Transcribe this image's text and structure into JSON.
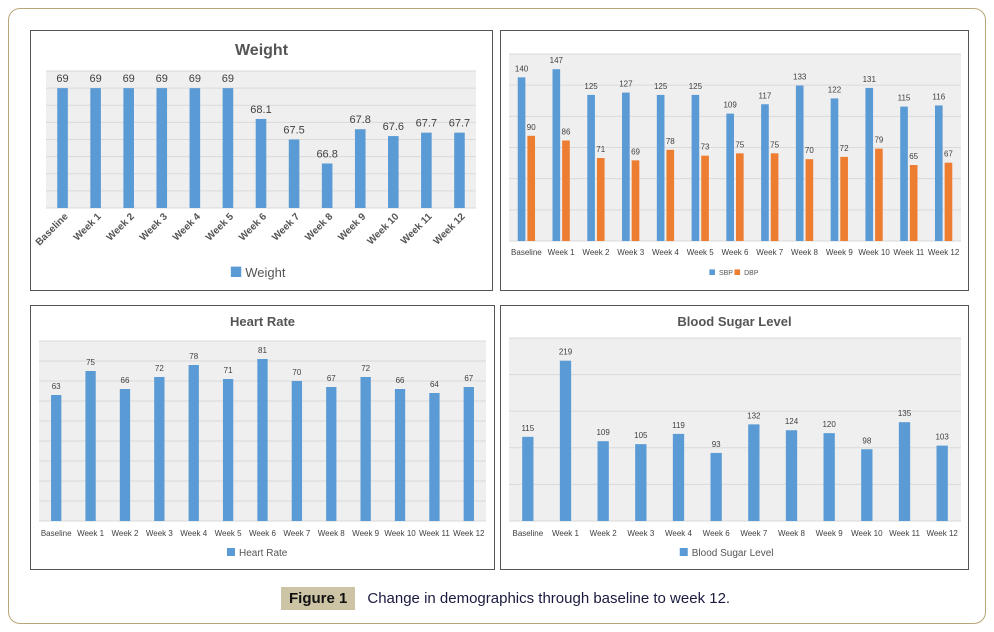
{
  "chart_data": [
    {
      "type": "bar",
      "title": "Weight",
      "categories": [
        "Baseline",
        "Week 1",
        "Week 2",
        "Week 3",
        "Week 4",
        "Week 5",
        "Week 6",
        "Week 7",
        "Week 8",
        "Week 9",
        "Week 10",
        "Week 11",
        "Week 12"
      ],
      "series": [
        {
          "name": "Weight",
          "color": "#5b9bd5",
          "values": [
            69,
            69,
            69,
            69,
            69,
            69,
            68.1,
            67.5,
            66.8,
            67.8,
            67.6,
            67.7,
            67.7
          ]
        }
      ],
      "ylim": [
        65.5,
        69.5
      ],
      "grid": true,
      "legend": "bottom",
      "xlabel": "",
      "ylabel": ""
    },
    {
      "type": "bar",
      "title": "",
      "categories": [
        "Baseline",
        "Week 1",
        "Week 2",
        "Week 3",
        "Week 4",
        "Week 5",
        "Week 6",
        "Week 7",
        "Week 8",
        "Week 9",
        "Week 10",
        "Week 11",
        "Week 12"
      ],
      "series": [
        {
          "name": "SBP",
          "color": "#5b9bd5",
          "values": [
            140,
            147,
            125,
            127,
            125,
            125,
            109,
            117,
            133,
            122,
            131,
            115,
            116
          ]
        },
        {
          "name": "DBP",
          "color": "#ed7d31",
          "values": [
            90,
            86,
            71,
            69,
            78,
            73,
            75,
            75,
            70,
            72,
            79,
            65,
            67
          ]
        }
      ],
      "ylim": [
        0,
        160
      ],
      "grid": true,
      "legend": "bottom",
      "xlabel": "",
      "ylabel": ""
    },
    {
      "type": "bar",
      "title": "Heart Rate",
      "categories": [
        "Baseline",
        "Week 1",
        "Week 2",
        "Week 3",
        "Week 4",
        "Week 5",
        "Week 6",
        "Week 7",
        "Week 8",
        "Week 9",
        "Week 10",
        "Week 11",
        "Week 12"
      ],
      "series": [
        {
          "name": "Heart Rate",
          "color": "#5b9bd5",
          "values": [
            63,
            75,
            66,
            72,
            78,
            71,
            81,
            70,
            67,
            72,
            66,
            64,
            67
          ]
        }
      ],
      "ylim": [
        0,
        90
      ],
      "grid": true,
      "legend": "bottom",
      "xlabel": "",
      "ylabel": ""
    },
    {
      "type": "bar",
      "title": "Blood Sugar Level",
      "categories": [
        "Baseline",
        "Week 1",
        "Week 2",
        "Week 3",
        "Week 4",
        "Week 6",
        "Week 7",
        "Week 8",
        "Week 9",
        "Week 10",
        "Week 11",
        "Week 12"
      ],
      "series": [
        {
          "name": "Blood Sugar Level",
          "color": "#5b9bd5",
          "values": [
            115,
            219,
            109,
            105,
            119,
            93,
            132,
            124,
            120,
            98,
            135,
            103
          ]
        }
      ],
      "ylim": [
        0,
        250
      ],
      "grid": true,
      "legend": "bottom",
      "xlabel": "",
      "ylabel": ""
    }
  ],
  "caption": {
    "label": "Figure 1",
    "text": "Change in demographics through baseline to week 12."
  }
}
